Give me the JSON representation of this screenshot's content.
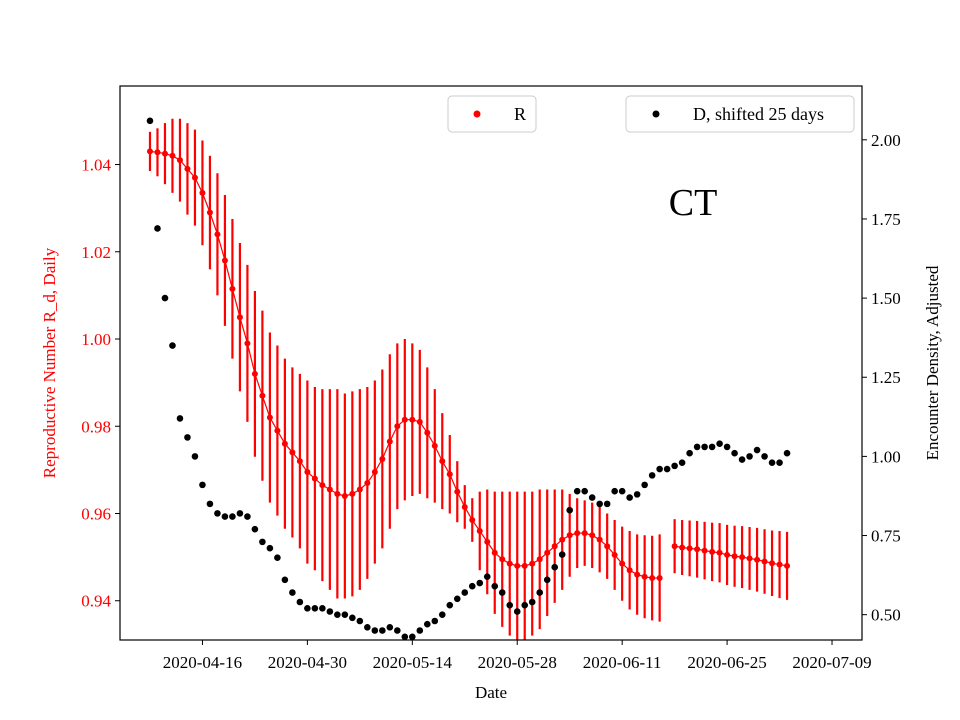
{
  "chart_data": {
    "type": "scatter",
    "annotation": "CT",
    "xlabel": "Date",
    "ylabel_left": "Reproductive Number R_d, Daily",
    "ylabel_right": "Encounter Density, Adjusted",
    "x_ticks": [
      "2020-04-16",
      "2020-04-30",
      "2020-05-14",
      "2020-05-28",
      "2020-06-11",
      "2020-06-25",
      "2020-07-09"
    ],
    "x_range": [
      "2020-04-05",
      "2020-07-13"
    ],
    "x_start_date": "2020-04-09",
    "y_left_ticks": [
      "0.94",
      "0.96",
      "0.98",
      "1.00",
      "1.02",
      "1.04"
    ],
    "y_left_range": [
      0.931,
      1.058
    ],
    "y_right_ticks": [
      "0.50",
      "0.75",
      "1.00",
      "1.25",
      "1.50",
      "1.75",
      "2.00"
    ],
    "y_right_range": [
      0.42,
      2.17
    ],
    "left_color": "#ff0000",
    "right_color": "#000000",
    "series": [
      {
        "name": "R",
        "color": "#ff0000",
        "axis": "left",
        "values": [
          1.043,
          1.0428,
          1.0425,
          1.042,
          1.041,
          1.039,
          1.037,
          1.0335,
          1.029,
          1.024,
          1.018,
          1.0115,
          1.005,
          0.999,
          0.992,
          0.987,
          0.982,
          0.979,
          0.976,
          0.974,
          0.972,
          0.9695,
          0.968,
          0.9665,
          0.9655,
          0.9645,
          0.964,
          0.9645,
          0.9655,
          0.967,
          0.9695,
          0.9725,
          0.9765,
          0.98,
          0.9815,
          0.9815,
          0.981,
          0.9785,
          0.9755,
          0.972,
          0.969,
          0.965,
          0.9615,
          0.9585,
          0.956,
          0.9535,
          0.951,
          0.9495,
          0.9485,
          0.948,
          0.948,
          0.9485,
          0.9495,
          0.951,
          0.9525,
          0.954,
          0.955,
          0.9555,
          0.9555,
          0.955,
          0.954,
          0.9525,
          0.9505,
          0.9485,
          0.947,
          0.946,
          0.9455,
          0.9452,
          0.9452,
          null,
          0.9525,
          0.9522,
          0.952,
          0.9518,
          0.9515,
          0.9512,
          0.951,
          0.9505,
          0.9502,
          0.95,
          0.9497,
          0.9494,
          0.949,
          0.9486,
          0.9483,
          0.948
        ],
        "errors": [
          0.0045,
          0.0055,
          0.007,
          0.0085,
          0.0095,
          0.0105,
          0.011,
          0.012,
          0.013,
          0.014,
          0.015,
          0.016,
          0.017,
          0.018,
          0.019,
          0.0195,
          0.0195,
          0.0195,
          0.0195,
          0.0195,
          0.02,
          0.021,
          0.021,
          0.022,
          0.023,
          0.024,
          0.0235,
          0.0235,
          0.023,
          0.022,
          0.021,
          0.0205,
          0.02,
          0.019,
          0.0185,
          0.0175,
          0.0165,
          0.015,
          0.013,
          0.011,
          0.009,
          0.007,
          0.005,
          0.005,
          0.009,
          0.012,
          0.014,
          0.0155,
          0.0165,
          0.017,
          0.017,
          0.0165,
          0.016,
          0.0145,
          0.013,
          0.0115,
          0.0095,
          0.008,
          0.0075,
          0.0075,
          0.0075,
          0.0075,
          0.008,
          0.0085,
          0.009,
          0.0092,
          0.0095,
          0.0097,
          0.01,
          null,
          0.0062,
          0.0063,
          0.0064,
          0.0065,
          0.0066,
          0.0067,
          0.0068,
          0.0069,
          0.007,
          0.0071,
          0.0072,
          0.0073,
          0.0074,
          0.0075,
          0.0077,
          0.0078
        ]
      },
      {
        "name": "D, shifted 25 days",
        "color": "#000000",
        "axis": "right",
        "values": [
          2.06,
          1.72,
          1.5,
          1.35,
          1.12,
          1.06,
          1.0,
          0.91,
          0.85,
          0.82,
          0.81,
          0.81,
          0.82,
          0.81,
          0.77,
          0.73,
          0.71,
          0.68,
          0.61,
          0.57,
          0.54,
          0.52,
          0.52,
          0.52,
          0.51,
          0.5,
          0.5,
          0.49,
          0.48,
          0.46,
          0.45,
          0.45,
          0.46,
          0.45,
          0.43,
          0.43,
          0.45,
          0.47,
          0.48,
          0.5,
          0.53,
          0.55,
          0.57,
          0.59,
          0.6,
          0.62,
          0.59,
          0.57,
          0.53,
          0.51,
          0.53,
          0.54,
          0.57,
          0.61,
          0.65,
          0.69,
          0.83,
          0.89,
          0.89,
          0.87,
          0.85,
          0.85,
          0.89,
          0.89,
          0.87,
          0.88,
          0.91,
          0.94,
          0.96,
          0.96,
          0.97,
          0.98,
          1.01,
          1.03,
          1.03,
          1.03,
          1.04,
          1.03,
          1.01,
          0.99,
          1.0,
          1.02,
          1.0,
          0.98,
          0.98,
          1.01
        ]
      }
    ]
  }
}
